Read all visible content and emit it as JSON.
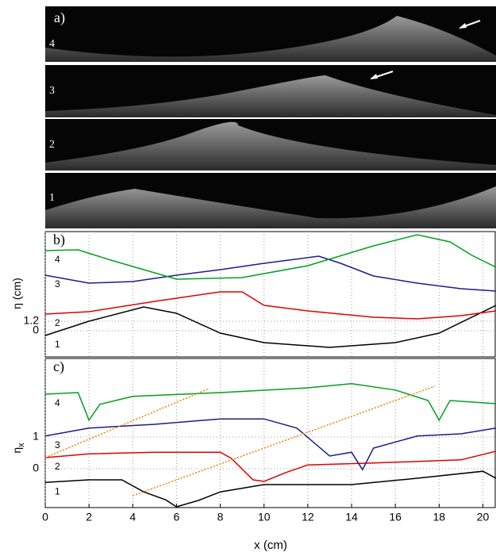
{
  "image_panel": {
    "label": "a)",
    "strips": [
      "4",
      "3",
      "2",
      "1"
    ]
  },
  "chart_data": [
    {
      "type": "line",
      "title": "b)",
      "ylabel": "η (cm)",
      "xlim": [
        0,
        20.6
      ],
      "ylim": [
        -3.3,
        12.5
      ],
      "yticks": [
        0,
        1.2
      ],
      "grid": true,
      "series": [
        {
          "name": "1",
          "color": "#000000",
          "x": [
            0,
            2,
            4.5,
            6,
            8,
            10,
            13,
            16,
            18,
            20.6
          ],
          "values": [
            -0.6,
            1.2,
            3.0,
            2.2,
            -0.3,
            -1.5,
            -2.1,
            -1.5,
            -0.3,
            3.2
          ]
        },
        {
          "name": "2",
          "color": "#e00000",
          "x": [
            0,
            2,
            5,
            8,
            9,
            10,
            12,
            15,
            17,
            19,
            20.6
          ],
          "values": [
            2.1,
            2.4,
            3.7,
            4.9,
            4.9,
            3.2,
            2.5,
            1.7,
            1.5,
            1.9,
            2.5
          ]
        },
        {
          "name": "3",
          "color": "#1c1c8c",
          "x": [
            0,
            2,
            4,
            6,
            8,
            10,
            12.5,
            13.5,
            15,
            17,
            19,
            20.6
          ],
          "values": [
            7.0,
            6.0,
            6.2,
            7.0,
            7.7,
            8.5,
            9.4,
            8.5,
            6.9,
            6.0,
            5.3,
            5.0
          ]
        },
        {
          "name": "4",
          "color": "#00a020",
          "x": [
            0,
            1.5,
            3,
            6,
            9,
            12,
            15,
            17,
            18.5,
            19.5,
            20.6
          ],
          "values": [
            10.1,
            10.2,
            8.9,
            6.5,
            6.7,
            8.2,
            10.7,
            12.1,
            11.2,
            9.5,
            8.0
          ]
        }
      ]
    },
    {
      "type": "line",
      "title": "c)",
      "ylabel": "η",
      "ylabel_sub": "x",
      "xlabel": "x (cm)",
      "xlim": [
        0,
        20.6
      ],
      "ylim": [
        -1.225,
        3.475
      ],
      "xticks": [
        0,
        2,
        4,
        6,
        8,
        10,
        12,
        14,
        16,
        18,
        20
      ],
      "yticks": [
        0,
        1
      ],
      "grid": true,
      "series": [
        {
          "name": "1",
          "color": "#000000",
          "x": [
            0,
            2,
            3.5,
            4.5,
            5.5,
            6,
            7,
            8,
            10,
            14,
            17,
            20,
            20.6
          ],
          "values": [
            -0.43,
            -0.35,
            -0.35,
            -0.73,
            -0.98,
            -1.2,
            -1.0,
            -0.73,
            -0.5,
            -0.5,
            -0.3,
            -0.08,
            -0.3
          ]
        },
        {
          "name": "2",
          "color": "#e00000",
          "x": [
            0,
            2,
            5,
            8,
            8.5,
            9.5,
            10,
            11,
            12,
            15,
            19,
            20.6
          ],
          "values": [
            0.35,
            0.47,
            0.52,
            0.52,
            0.33,
            -0.35,
            -0.4,
            -0.12,
            0.12,
            0.18,
            0.28,
            0.55
          ]
        },
        {
          "name": "3",
          "color": "#1c1c8c",
          "x": [
            0,
            2,
            5,
            8,
            10,
            11.5,
            13,
            14,
            14.5,
            15,
            17,
            19,
            20.6
          ],
          "values": [
            1.03,
            1.28,
            1.4,
            1.57,
            1.57,
            1.28,
            0.4,
            0.52,
            -0.03,
            0.65,
            1.03,
            1.1,
            1.28
          ]
        },
        {
          "name": "4",
          "color": "#00a020",
          "x": [
            0,
            1.5,
            2,
            2.5,
            4,
            8,
            12,
            14,
            16,
            17.5,
            18,
            18.5,
            20.6
          ],
          "values": [
            2.35,
            2.4,
            1.53,
            2.03,
            2.28,
            2.4,
            2.55,
            2.68,
            2.48,
            2.15,
            1.53,
            2.15,
            2.05
          ]
        },
        {
          "color": "#f08000",
          "dashed": true,
          "x": [
            0,
            7.5
          ],
          "values": [
            0.35,
            2.53
          ]
        },
        {
          "color": "#f08000",
          "dashed": true,
          "x": [
            4,
            17.8
          ],
          "values": [
            -0.85,
            2.6
          ]
        }
      ]
    }
  ]
}
